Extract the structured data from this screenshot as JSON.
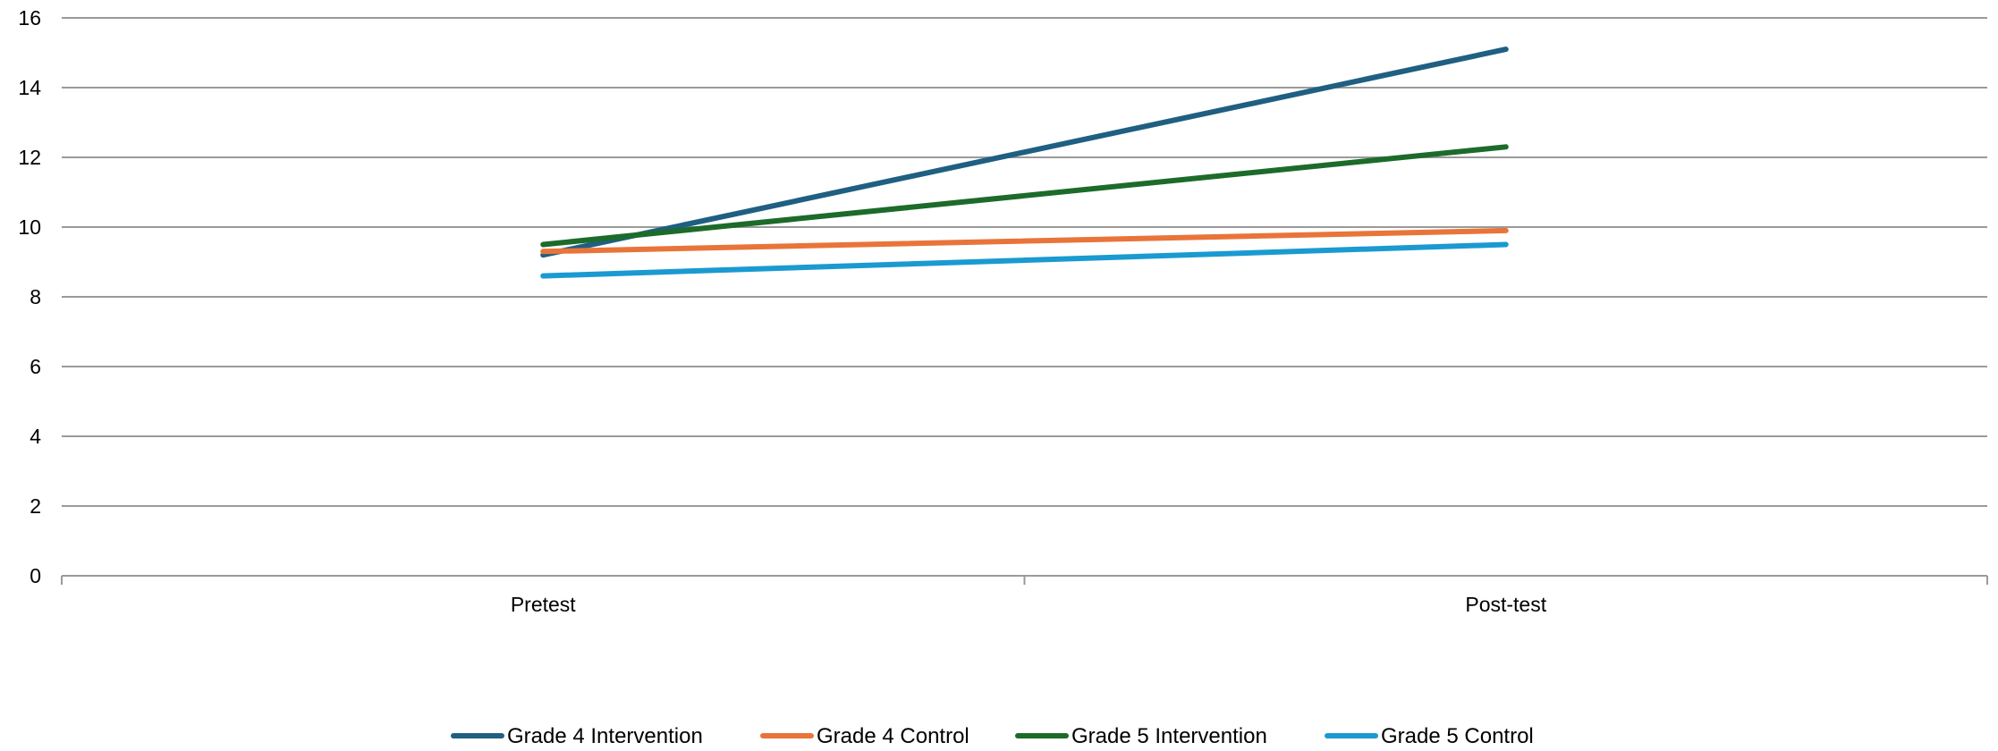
{
  "chart_data": {
    "type": "line",
    "title": "",
    "xlabel": "",
    "ylabel": "",
    "categories": [
      "Pretest",
      "Post-test"
    ],
    "ylim": [
      0,
      16
    ],
    "yticks": [
      0,
      2,
      4,
      6,
      8,
      10,
      12,
      14,
      16
    ],
    "grid": true,
    "legend_position": "bottom",
    "series": [
      {
        "name": "Grade 4 Intervention",
        "values": [
          9.2,
          15.1
        ],
        "color": "#1f5f82"
      },
      {
        "name": "Grade 4 Control",
        "values": [
          9.3,
          9.9
        ],
        "color": "#e9743a"
      },
      {
        "name": "Grade 5 Intervention",
        "values": [
          9.5,
          12.3
        ],
        "color": "#1c6b2a"
      },
      {
        "name": "Grade 5 Control",
        "values": [
          8.6,
          9.5
        ],
        "color": "#1a9ad1"
      }
    ]
  },
  "colors": {
    "gridline": "#9a9a9a",
    "axis": "#9a9a9a"
  }
}
